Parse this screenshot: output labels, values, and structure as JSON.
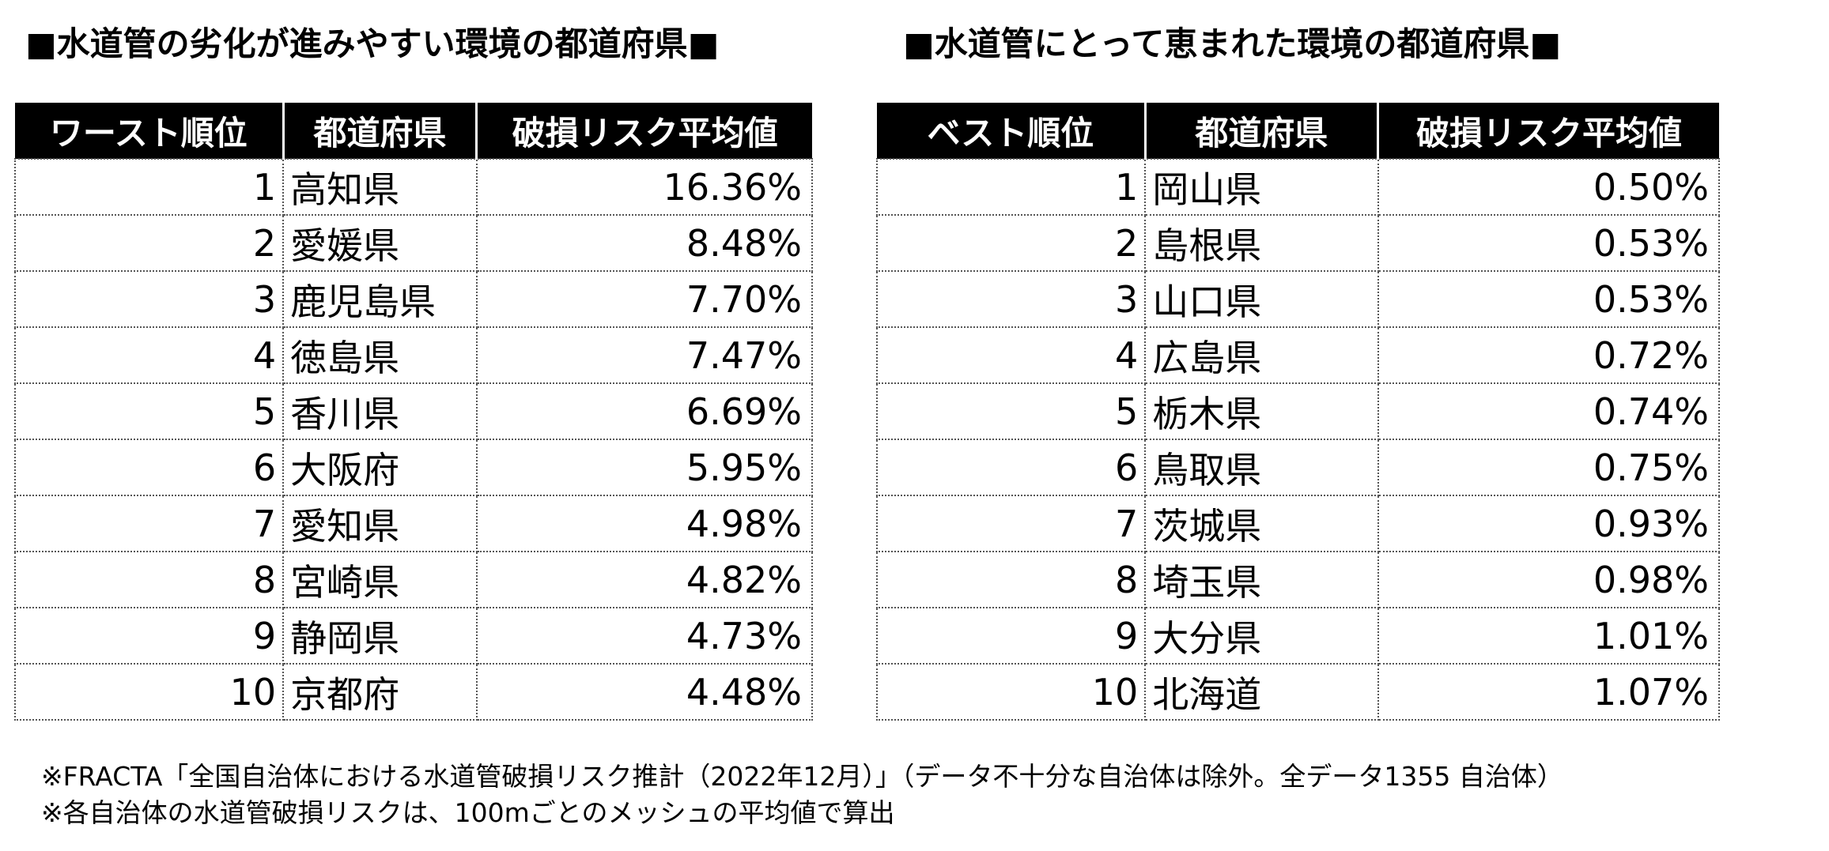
{
  "worst": {
    "title": "■水道管の劣化が進みやすい環境の都道府県■",
    "headers": [
      "ワースト順位",
      "都道府県",
      "破損リスク平均値"
    ],
    "rows": [
      {
        "rank": "1",
        "pref": "高知県",
        "value": "16.36%"
      },
      {
        "rank": "2",
        "pref": "愛媛県",
        "value": "8.48%"
      },
      {
        "rank": "3",
        "pref": "鹿児島県",
        "value": "7.70%"
      },
      {
        "rank": "4",
        "pref": "徳島県",
        "value": "7.47%"
      },
      {
        "rank": "5",
        "pref": "香川県",
        "value": "6.69%"
      },
      {
        "rank": "6",
        "pref": "大阪府",
        "value": "5.95%"
      },
      {
        "rank": "7",
        "pref": "愛知県",
        "value": "4.98%"
      },
      {
        "rank": "8",
        "pref": "宮崎県",
        "value": "4.82%"
      },
      {
        "rank": "9",
        "pref": "静岡県",
        "value": "4.73%"
      },
      {
        "rank": "10",
        "pref": "京都府",
        "value": "4.48%"
      }
    ]
  },
  "best": {
    "title": "■水道管にとって恵まれた環境の都道府県■",
    "headers": [
      "ベスト順位",
      "都道府県",
      "破損リスク平均値"
    ],
    "rows": [
      {
        "rank": "1",
        "pref": "岡山県",
        "value": "0.50%"
      },
      {
        "rank": "2",
        "pref": "島根県",
        "value": "0.53%"
      },
      {
        "rank": "3",
        "pref": "山口県",
        "value": "0.53%"
      },
      {
        "rank": "4",
        "pref": "広島県",
        "value": "0.72%"
      },
      {
        "rank": "5",
        "pref": "栃木県",
        "value": "0.74%"
      },
      {
        "rank": "6",
        "pref": "鳥取県",
        "value": "0.75%"
      },
      {
        "rank": "7",
        "pref": "茨城県",
        "value": "0.93%"
      },
      {
        "rank": "8",
        "pref": "埼玉県",
        "value": "0.98%"
      },
      {
        "rank": "9",
        "pref": "大分県",
        "value": "1.01%"
      },
      {
        "rank": "10",
        "pref": "北海道",
        "value": "1.07%"
      }
    ]
  },
  "notes": [
    "※FRACTA「全国自治体における水道管破損リスク推計（2022年12月）」（データ不十分な自治体は除外。全データ1355 自治体）",
    "※各自治体の水道管破損リスクは、100mごとのメッシュの平均値で算出"
  ]
}
